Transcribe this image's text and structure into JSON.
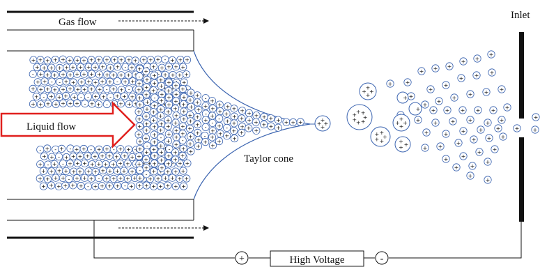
{
  "labels": {
    "gas_flow": "Gas flow",
    "liquid_flow": "Liquid flow",
    "taylor_cone": "Taylor cone",
    "inlet": "Inlet",
    "high_voltage": "High Voltage",
    "plus_terminal": "+",
    "minus_terminal": "-"
  },
  "colors": {
    "droplet_stroke": "#3b64b0",
    "liquid_arrow": "#e0201e",
    "walls": "#111111"
  }
}
